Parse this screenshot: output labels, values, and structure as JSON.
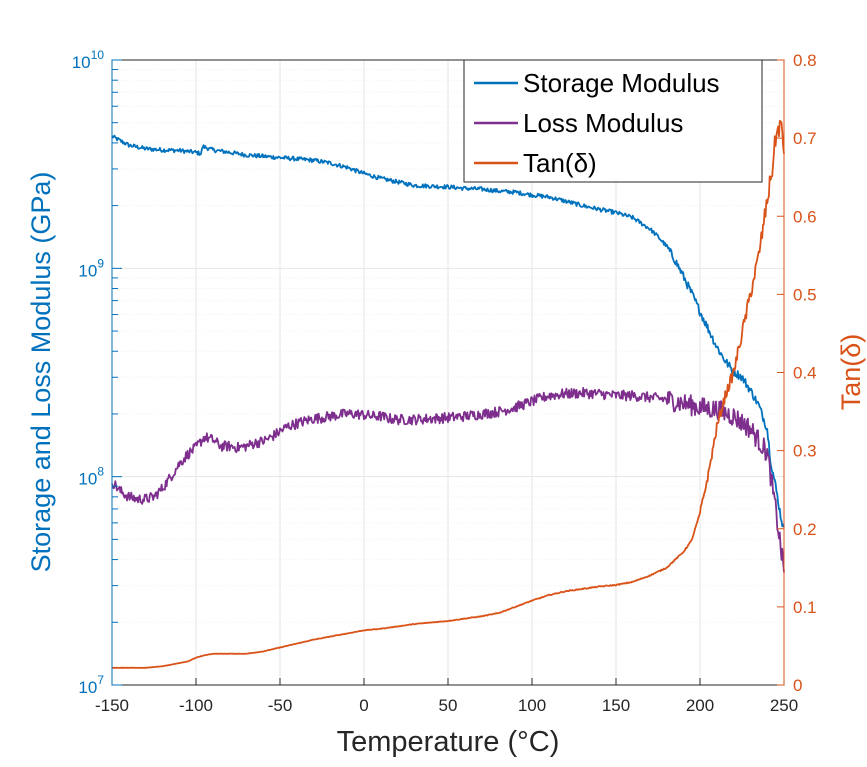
{
  "chart_data": {
    "type": "line",
    "xlabel": "Temperature (°C)",
    "ylabel_left": "Storage and Loss Modulus (GPa)",
    "ylabel_right": "Tan(δ)",
    "xlim": [
      -150,
      250
    ],
    "xticks": [
      -150,
      -100,
      -50,
      0,
      50,
      100,
      150,
      200,
      250
    ],
    "xtick_labels": [
      "-150",
      "-100",
      "-50",
      "0",
      "50",
      "100",
      "150",
      "200",
      "250"
    ],
    "ylim_left": [
      10000000,
      10000000000
    ],
    "yscale_left": "log",
    "yticks_left": [
      {
        "base": "10",
        "exp": "7",
        "value": 10000000
      },
      {
        "base": "10",
        "exp": "8",
        "value": 100000000
      },
      {
        "base": "10",
        "exp": "9",
        "value": 1000000000
      },
      {
        "base": "10",
        "exp": "10",
        "value": 10000000000
      }
    ],
    "ylim_right": [
      0,
      0.8
    ],
    "yticks_right": [
      0,
      0.1,
      0.2,
      0.3,
      0.4,
      0.5,
      0.6,
      0.7,
      0.8
    ],
    "ytick_labels_right": [
      "0",
      "0.1",
      "0.2",
      "0.3",
      "0.4",
      "0.5",
      "0.6",
      "0.7",
      "0.8"
    ],
    "grid": true,
    "legend_position": "top-right",
    "colors": {
      "left_axis": "#0072bd",
      "right_axis": "#d95319",
      "storage": "#0072bd",
      "loss": "#7e2f8e",
      "tan": "#d95319",
      "grid": "#e6e6e6",
      "minor_grid": "#f0f0f0"
    },
    "series": [
      {
        "name": "Storage Modulus",
        "axis": "left",
        "color": "#0072bd",
        "x": [
          -150,
          -140,
          -130,
          -120,
          -110,
          -100,
          -97,
          -96,
          -90,
          -80,
          -70,
          -60,
          -50,
          -40,
          -30,
          -20,
          -10,
          0,
          10,
          20,
          30,
          40,
          50,
          60,
          70,
          80,
          90,
          100,
          110,
          120,
          130,
          140,
          150,
          160,
          170,
          175,
          180,
          185,
          190,
          195,
          200,
          205,
          210,
          215,
          220,
          225,
          230,
          235,
          240,
          242,
          245,
          248,
          250
        ],
        "values": [
          4300000000,
          3900000000,
          3750000000,
          3700000000,
          3680000000,
          3600000000,
          3550000000,
          3850000000,
          3700000000,
          3600000000,
          3500000000,
          3450000000,
          3400000000,
          3350000000,
          3300000000,
          3200000000,
          3050000000,
          2850000000,
          2700000000,
          2600000000,
          2500000000,
          2480000000,
          2460000000,
          2420000000,
          2400000000,
          2350000000,
          2320000000,
          2250000000,
          2200000000,
          2100000000,
          2000000000,
          1920000000,
          1850000000,
          1750000000,
          1550000000,
          1420000000,
          1280000000,
          1100000000,
          920000000,
          760000000,
          620000000,
          510000000,
          420000000,
          360000000,
          320000000,
          300000000,
          260000000,
          220000000,
          170000000,
          120000000,
          90000000,
          65000000,
          55000000
        ],
        "noise": 0.02
      },
      {
        "name": "Loss Modulus",
        "axis": "left",
        "color": "#7e2f8e",
        "x": [
          -150,
          -145,
          -140,
          -135,
          -130,
          -125,
          -120,
          -115,
          -110,
          -105,
          -100,
          -95,
          -90,
          -85,
          -80,
          -75,
          -70,
          -65,
          -60,
          -55,
          -50,
          -45,
          -40,
          -35,
          -30,
          -25,
          -20,
          -15,
          -10,
          -5,
          0,
          5,
          10,
          15,
          20,
          30,
          40,
          50,
          60,
          70,
          80,
          90,
          100,
          110,
          120,
          130,
          140,
          150,
          160,
          170,
          180,
          190,
          200,
          210,
          220,
          230,
          240,
          245,
          250
        ],
        "values": [
          95000000,
          85000000,
          80000000,
          78000000,
          78000000,
          80000000,
          88000000,
          100000000,
          115000000,
          128000000,
          138000000,
          155000000,
          150000000,
          140000000,
          140000000,
          138000000,
          140000000,
          145000000,
          148000000,
          155000000,
          165000000,
          175000000,
          180000000,
          185000000,
          190000000,
          192000000,
          195000000,
          198000000,
          200000000,
          200000000,
          198000000,
          195000000,
          195000000,
          190000000,
          188000000,
          188000000,
          190000000,
          192000000,
          195000000,
          200000000,
          205000000,
          215000000,
          230000000,
          245000000,
          250000000,
          252000000,
          250000000,
          245000000,
          245000000,
          240000000,
          235000000,
          225000000,
          215000000,
          210000000,
          195000000,
          170000000,
          130000000,
          70000000,
          35000000
        ],
        "noise": 0.05
      },
      {
        "name": "Tan(δ)",
        "axis": "right",
        "color": "#d95319",
        "x": [
          -150,
          -140,
          -130,
          -120,
          -110,
          -105,
          -100,
          -95,
          -90,
          -80,
          -70,
          -60,
          -50,
          -40,
          -30,
          -20,
          -10,
          0,
          10,
          20,
          30,
          40,
          50,
          60,
          70,
          80,
          90,
          100,
          110,
          120,
          130,
          140,
          150,
          160,
          170,
          180,
          185,
          190,
          195,
          200,
          205,
          210,
          215,
          220,
          225,
          230,
          235,
          240,
          243,
          245,
          248,
          250
        ],
        "values": [
          0.022,
          0.022,
          0.022,
          0.024,
          0.028,
          0.03,
          0.035,
          0.038,
          0.04,
          0.04,
          0.04,
          0.043,
          0.048,
          0.053,
          0.058,
          0.062,
          0.066,
          0.07,
          0.072,
          0.075,
          0.078,
          0.08,
          0.082,
          0.085,
          0.088,
          0.092,
          0.1,
          0.108,
          0.115,
          0.12,
          0.123,
          0.126,
          0.128,
          0.132,
          0.14,
          0.15,
          0.16,
          0.17,
          0.185,
          0.22,
          0.27,
          0.33,
          0.37,
          0.4,
          0.45,
          0.5,
          0.55,
          0.62,
          0.66,
          0.7,
          0.72,
          0.68
        ],
        "noise": 0.04
      }
    ]
  }
}
